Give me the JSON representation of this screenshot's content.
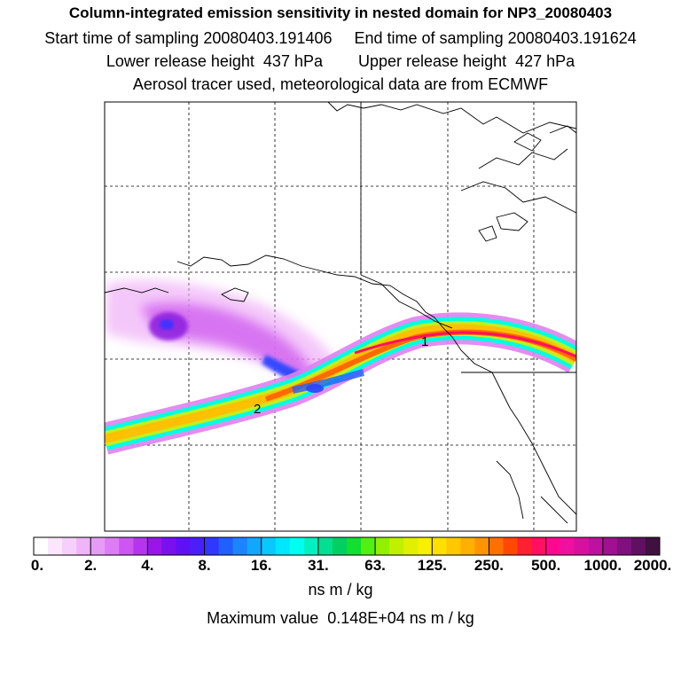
{
  "header": {
    "title": "Column-integrated emission sensitivity in nested domain for NP3_20080403",
    "start_label": "Start time of sampling 20080403.191406",
    "end_label": "End time of sampling 20080403.191624",
    "lower_label": "Lower release height  437 hPa",
    "upper_label": "Upper release height  427 hPa",
    "tracer_note": "Aerosol tracer used, meteorological data are from ECMWF"
  },
  "map": {
    "markers": [
      {
        "id": "release-1",
        "label": "1"
      },
      {
        "id": "release-2",
        "label": "2"
      }
    ],
    "plume_colors": [
      "#e060f0",
      "#a020e0",
      "#2050ff",
      "#00c0ff",
      "#00ffd0",
      "#20e050",
      "#e0ff20",
      "#ffc000",
      "#ff6000",
      "#ff1060"
    ]
  },
  "colorbar": {
    "tick_labels": [
      "0.",
      "2.",
      "4.",
      "8.",
      "16.",
      "31.",
      "63.",
      "125.",
      "250.",
      "500.",
      "1000.",
      "2000."
    ],
    "colors": [
      "#ffffff",
      "#fbe6fd",
      "#f6d0fb",
      "#f0b4f8",
      "#e69cf6",
      "#dd7cf5",
      "#cd55f2",
      "#b535ee",
      "#9a15ea",
      "#7a10ee",
      "#6010f4",
      "#4a20fa",
      "#3038ff",
      "#2060ff",
      "#1c84ff",
      "#10a8ff",
      "#08c8ff",
      "#00e6ff",
      "#00fff0",
      "#00f0c0",
      "#00e090",
      "#00d060",
      "#10e030",
      "#50f010",
      "#90f000",
      "#c0f000",
      "#e0f000",
      "#f8f000",
      "#ffe000",
      "#ffc800",
      "#ffb000",
      "#ff9400",
      "#ff7000",
      "#ff4800",
      "#ff2030",
      "#ff1060",
      "#ff0890",
      "#ee10a0",
      "#d810a0",
      "#c010a0",
      "#a01090",
      "#801080",
      "#601060",
      "#401040"
    ],
    "unit": "ns m / kg",
    "max_value_label": "Maximum value  0.148E+04 ns m / kg"
  }
}
